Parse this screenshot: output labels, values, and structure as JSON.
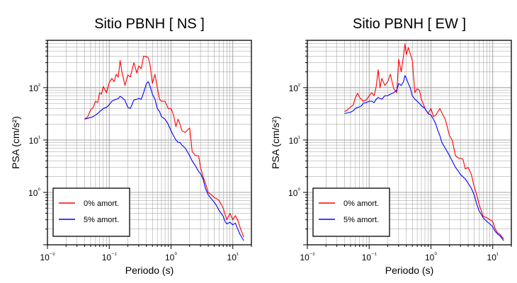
{
  "chart_data": [
    {
      "type": "line",
      "title": "Sitio PBNH [ NS ]",
      "xlabel": "Periodo (s)",
      "ylabel": "PSA (cm/s²)",
      "xscale": "log",
      "yscale": "log",
      "xlim": [
        0.01,
        20
      ],
      "ylim": [
        0.1,
        800
      ],
      "xticks": [
        "10⁻²",
        "10⁻¹",
        "10⁰",
        "10¹"
      ],
      "yticks": [
        "10⁰",
        "10¹",
        "10²"
      ],
      "grid": true,
      "legend": "bottom-left",
      "series": [
        {
          "name": "0% amort.",
          "color": "#ff0000",
          "x": [
            0.04,
            0.045,
            0.05,
            0.055,
            0.06,
            0.065,
            0.07,
            0.075,
            0.08,
            0.09,
            0.1,
            0.11,
            0.12,
            0.13,
            0.14,
            0.15,
            0.16,
            0.18,
            0.2,
            0.22,
            0.25,
            0.28,
            0.3,
            0.33,
            0.36,
            0.4,
            0.43,
            0.46,
            0.5,
            0.55,
            0.6,
            0.65,
            0.7,
            0.8,
            0.9,
            1.0,
            1.1,
            1.2,
            1.3,
            1.4,
            1.5,
            1.7,
            2.0,
            2.2,
            2.5,
            2.8,
            3.0,
            3.3,
            3.6,
            4.0,
            4.5,
            5.0,
            5.5,
            6.0,
            7.0,
            7.5,
            8.0,
            9.0,
            10.0,
            11.0,
            12.0,
            13.0,
            15.0
          ],
          "y": [
            25,
            28,
            38,
            42,
            55,
            52,
            80,
            75,
            105,
            80,
            125,
            150,
            130,
            180,
            160,
            330,
            200,
            110,
            175,
            160,
            300,
            190,
            260,
            230,
            400,
            390,
            370,
            260,
            120,
            180,
            100,
            60,
            55,
            55,
            40,
            40,
            30,
            18,
            25,
            20,
            15,
            14,
            17,
            6,
            5,
            5,
            3,
            2,
            1.5,
            1.0,
            0.9,
            0.8,
            0.75,
            0.7,
            0.5,
            0.38,
            0.3,
            0.4,
            0.3,
            0.36,
            0.3,
            0.22,
            0.14
          ]
        },
        {
          "name": "5% amort.",
          "color": "#0000ff",
          "x": [
            0.04,
            0.045,
            0.05,
            0.055,
            0.06,
            0.065,
            0.07,
            0.075,
            0.08,
            0.09,
            0.1,
            0.11,
            0.12,
            0.13,
            0.14,
            0.15,
            0.16,
            0.18,
            0.2,
            0.22,
            0.25,
            0.28,
            0.3,
            0.33,
            0.36,
            0.4,
            0.43,
            0.46,
            0.5,
            0.55,
            0.6,
            0.65,
            0.7,
            0.8,
            0.9,
            1.0,
            1.1,
            1.2,
            1.3,
            1.4,
            1.5,
            1.7,
            2.0,
            2.2,
            2.5,
            2.8,
            3.0,
            3.3,
            3.6,
            4.0,
            4.5,
            5.0,
            5.5,
            6.0,
            7.0,
            7.5,
            8.0,
            9.0,
            10.0,
            11.0,
            12.0,
            13.0,
            15.0
          ],
          "y": [
            25,
            26,
            27,
            28,
            30,
            32,
            35,
            37,
            40,
            42,
            47,
            55,
            58,
            60,
            62,
            68,
            65,
            57,
            42,
            40,
            58,
            60,
            62,
            60,
            80,
            120,
            130,
            105,
            75,
            60,
            40,
            35,
            28,
            25,
            20,
            15,
            12,
            10,
            9,
            9,
            8,
            7,
            5,
            4,
            3.2,
            2.5,
            2.3,
            1.8,
            1.2,
            0.9,
            0.75,
            0.65,
            0.55,
            0.45,
            0.35,
            0.28,
            0.25,
            0.27,
            0.24,
            0.26,
            0.2,
            0.16,
            0.12
          ]
        }
      ]
    },
    {
      "type": "line",
      "title": "Sitio PBNH [ EW ]",
      "xlabel": "Periodo (s)",
      "ylabel": "PSA (cm/s²)",
      "xscale": "log",
      "yscale": "log",
      "xlim": [
        0.01,
        20
      ],
      "ylim": [
        0.1,
        800
      ],
      "xticks": [
        "10⁻²",
        "10⁻¹",
        "10⁰",
        "10¹"
      ],
      "yticks": [
        "10⁰",
        "10¹",
        "10²"
      ],
      "grid": true,
      "legend": "bottom-left",
      "series": [
        {
          "name": "0% amort.",
          "color": "#ff0000",
          "x": [
            0.04,
            0.045,
            0.05,
            0.055,
            0.06,
            0.065,
            0.07,
            0.075,
            0.08,
            0.09,
            0.1,
            0.11,
            0.12,
            0.13,
            0.14,
            0.15,
            0.16,
            0.18,
            0.2,
            0.22,
            0.25,
            0.28,
            0.3,
            0.33,
            0.36,
            0.38,
            0.4,
            0.43,
            0.46,
            0.5,
            0.55,
            0.6,
            0.65,
            0.7,
            0.8,
            0.9,
            1.0,
            1.1,
            1.2,
            1.3,
            1.4,
            1.5,
            1.7,
            2.0,
            2.2,
            2.5,
            2.8,
            3.0,
            3.3,
            3.6,
            4.0,
            4.5,
            5.0,
            5.5,
            6.0,
            7.0,
            8.0,
            9.0,
            10.0,
            11.0,
            12.0,
            13.0,
            15.0
          ],
          "y": [
            35,
            38,
            43,
            46,
            65,
            78,
            65,
            60,
            55,
            58,
            70,
            80,
            70,
            105,
            220,
            100,
            150,
            110,
            130,
            180,
            95,
            80,
            350,
            200,
            410,
            680,
            430,
            580,
            450,
            330,
            80,
            95,
            90,
            60,
            40,
            32,
            40,
            28,
            30,
            35,
            40,
            33,
            25,
            12,
            10,
            5,
            4.5,
            4.5,
            4.3,
            2.8,
            3.0,
            2.2,
            1.3,
            0.9,
            0.6,
            0.35,
            0.33,
            0.3,
            0.28,
            0.2,
            0.17,
            0.16,
            0.13
          ]
        },
        {
          "name": "5% amort.",
          "color": "#0000ff",
          "x": [
            0.04,
            0.045,
            0.05,
            0.055,
            0.06,
            0.065,
            0.07,
            0.075,
            0.08,
            0.09,
            0.1,
            0.11,
            0.12,
            0.13,
            0.14,
            0.15,
            0.16,
            0.18,
            0.2,
            0.22,
            0.25,
            0.28,
            0.3,
            0.33,
            0.36,
            0.38,
            0.4,
            0.43,
            0.46,
            0.5,
            0.55,
            0.6,
            0.65,
            0.7,
            0.8,
            0.9,
            1.0,
            1.1,
            1.2,
            1.3,
            1.4,
            1.5,
            1.7,
            2.0,
            2.2,
            2.5,
            2.8,
            3.0,
            3.3,
            3.6,
            4.0,
            4.5,
            5.0,
            5.5,
            6.0,
            7.0,
            8.0,
            9.0,
            10.0,
            11.0,
            12.0,
            13.0,
            15.0
          ],
          "y": [
            32,
            33,
            34,
            36,
            40,
            42,
            43,
            45,
            50,
            52,
            55,
            55,
            52,
            60,
            65,
            62,
            60,
            70,
            70,
            75,
            80,
            90,
            120,
            110,
            130,
            170,
            150,
            120,
            100,
            70,
            60,
            55,
            50,
            45,
            40,
            32,
            30,
            25,
            20,
            15,
            12,
            9,
            7,
            5,
            4,
            3,
            2.5,
            2.2,
            2.0,
            1.8,
            1.5,
            1.2,
            0.9,
            0.6,
            0.45,
            0.33,
            0.28,
            0.25,
            0.22,
            0.18,
            0.16,
            0.15,
            0.12
          ]
        }
      ]
    }
  ]
}
